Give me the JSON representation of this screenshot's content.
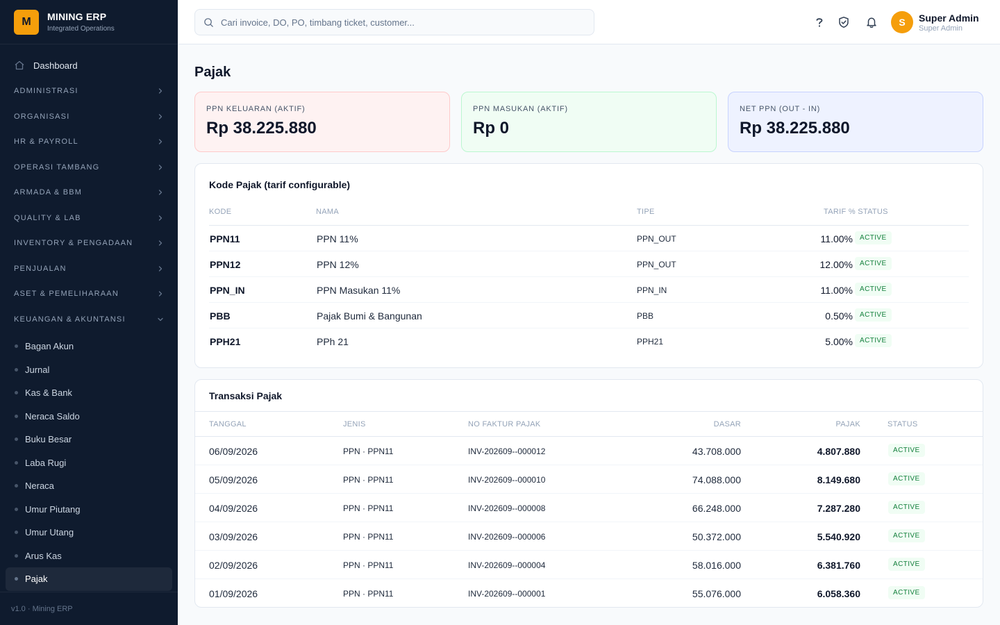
{
  "brand": {
    "logo_letter": "M",
    "title": "MINING ERP",
    "subtitle": "Integrated Operations"
  },
  "sidebar": {
    "dashboard": "Dashboard",
    "groups": [
      {
        "label": "ADMINISTRASI",
        "expanded": false
      },
      {
        "label": "ORGANISASI",
        "expanded": false
      },
      {
        "label": "HR & PAYROLL",
        "expanded": false
      },
      {
        "label": "OPERASI TAMBANG",
        "expanded": false
      },
      {
        "label": "ARMADA & BBM",
        "expanded": false
      },
      {
        "label": "QUALITY & LAB",
        "expanded": false
      },
      {
        "label": "INVENTORY & PENGADAAN",
        "expanded": false
      },
      {
        "label": "PENJUALAN",
        "expanded": false
      },
      {
        "label": "ASET & PEMELIHARAAN",
        "expanded": false
      },
      {
        "label": "KEUANGAN & AKUNTANSI",
        "expanded": true
      }
    ],
    "finance_items": [
      "Bagan Akun",
      "Jurnal",
      "Kas & Bank",
      "Neraca Saldo",
      "Buku Besar",
      "Laba Rugi",
      "Neraca",
      "Umur Piutang",
      "Umur Utang",
      "Arus Kas",
      "Pajak"
    ],
    "active_item": "Pajak",
    "footer": "v1.0 · Mining ERP"
  },
  "topbar": {
    "search_placeholder": "Cari invoice, DO, PO, timbang ticket, customer...",
    "icons": [
      "help-icon",
      "shield-check-icon",
      "bell-icon"
    ],
    "user": {
      "initial": "S",
      "name": "Super Admin",
      "role": "Super Admin"
    }
  },
  "page": {
    "title": "Pajak"
  },
  "stats": [
    {
      "label": "PPN KELUARAN (AKTIF)",
      "value": "Rp 38.225.880",
      "accent": "#fef2f2"
    },
    {
      "label": "PPN MASUKAN (AKTIF)",
      "value": "Rp 0",
      "accent": "#f0fdf4"
    },
    {
      "label": "NET PPN (OUT - IN)",
      "value": "Rp 38.225.880",
      "accent": "#eef2ff"
    }
  ],
  "tax_codes": {
    "title": "Kode Pajak (tarif configurable)",
    "headers": {
      "kode": "KODE",
      "nama": "NAMA",
      "tipe": "TIPE",
      "tarif_status": "TARIF % STATUS"
    },
    "rows": [
      {
        "kode": "PPN11",
        "nama": "PPN 11%",
        "tipe": "PPN_OUT",
        "tarif": "11.00%",
        "status": "ACTIVE"
      },
      {
        "kode": "PPN12",
        "nama": "PPN 12%",
        "tipe": "PPN_OUT",
        "tarif": "12.00%",
        "status": "ACTIVE"
      },
      {
        "kode": "PPN_IN",
        "nama": "PPN Masukan 11%",
        "tipe": "PPN_IN",
        "tarif": "11.00%",
        "status": "ACTIVE"
      },
      {
        "kode": "PBB",
        "nama": "Pajak Bumi & Bangunan",
        "tipe": "PBB",
        "tarif": "0.50%",
        "status": "ACTIVE"
      },
      {
        "kode": "PPH21",
        "nama": "PPh 21",
        "tipe": "PPH21",
        "tarif": "5.00%",
        "status": "ACTIVE"
      }
    ]
  },
  "transactions": {
    "title": "Transaksi Pajak",
    "headers": {
      "tanggal": "TANGGAL",
      "jenis": "JENIS",
      "faktur": "NO FAKTUR PAJAK",
      "dasar": "DASAR",
      "pajak": "PAJAK",
      "status": "STATUS"
    },
    "rows": [
      {
        "tanggal": "06/09/2026",
        "jenis": "PPN · PPN11",
        "faktur": "INV-202609--000012",
        "dasar": "43.708.000",
        "pajak": "4.807.880",
        "status": "ACTIVE"
      },
      {
        "tanggal": "05/09/2026",
        "jenis": "PPN · PPN11",
        "faktur": "INV-202609--000010",
        "dasar": "74.088.000",
        "pajak": "8.149.680",
        "status": "ACTIVE"
      },
      {
        "tanggal": "04/09/2026",
        "jenis": "PPN · PPN11",
        "faktur": "INV-202609--000008",
        "dasar": "66.248.000",
        "pajak": "7.287.280",
        "status": "ACTIVE"
      },
      {
        "tanggal": "03/09/2026",
        "jenis": "PPN · PPN11",
        "faktur": "INV-202609--000006",
        "dasar": "50.372.000",
        "pajak": "5.540.920",
        "status": "ACTIVE"
      },
      {
        "tanggal": "02/09/2026",
        "jenis": "PPN · PPN11",
        "faktur": "INV-202609--000004",
        "dasar": "58.016.000",
        "pajak": "6.381.760",
        "status": "ACTIVE"
      },
      {
        "tanggal": "01/09/2026",
        "jenis": "PPN · PPN11",
        "faktur": "INV-202609--000001",
        "dasar": "55.076.000",
        "pajak": "6.058.360",
        "status": "ACTIVE"
      }
    ]
  }
}
